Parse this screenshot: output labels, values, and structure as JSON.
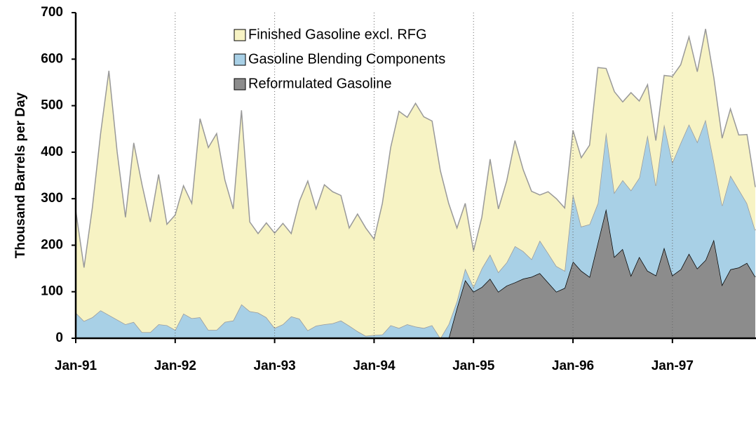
{
  "chart_data": {
    "type": "stacked_area",
    "y_label": "Thousand Barrels per Day",
    "categories": [
      "Jan-91",
      null,
      null,
      null,
      null,
      null,
      null,
      null,
      null,
      null,
      null,
      null,
      "Jan-92",
      null,
      null,
      null,
      null,
      null,
      null,
      null,
      null,
      null,
      null,
      null,
      "Jan-93",
      null,
      null,
      null,
      null,
      null,
      null,
      null,
      null,
      null,
      null,
      null,
      "Jan-94",
      null,
      null,
      null,
      null,
      null,
      null,
      null,
      null,
      null,
      null,
      null,
      "Jan-95",
      null,
      null,
      null,
      null,
      null,
      null,
      null,
      null,
      null,
      null,
      null,
      "Jan-96",
      null,
      null,
      null,
      null,
      null,
      null,
      null,
      null,
      null,
      null,
      null,
      "Jan-97",
      null,
      null,
      null,
      null,
      null,
      null,
      null,
      null,
      null,
      null
    ],
    "series": [
      {
        "name": "Finished Gasoline excl. RFG",
        "color": "#f7f3c4",
        "line_color": "#999999",
        "values": [
          220,
          115,
          235,
          380,
          525,
          360,
          230,
          385,
          317,
          237,
          322,
          217,
          247,
          275,
          247,
          427,
          392,
          422,
          305,
          240,
          417,
          192,
          170,
          203,
          204,
          217,
          178,
          253,
          321,
          251,
          300,
          283,
          269,
          210,
          252,
          232,
          206,
          282,
          382,
          466,
          445,
          480,
          454,
          439,
          360,
          260,
          157,
          140,
          78,
          110,
          205,
          136,
          175,
          227,
          175,
          146,
          98,
          132,
          145,
          135,
          137,
          148,
          170,
          292,
          137,
          217,
          168,
          210,
          165,
          108,
          97,
          105,
          185,
          168,
          188,
          151,
          195,
          180,
          145,
          143,
          117,
          148,
          93
        ]
      },
      {
        "name": "Gasoline Blending Components",
        "color": "#a8d0e6",
        "line_color": "#999999",
        "values": [
          55,
          37,
          45,
          60,
          50,
          40,
          30,
          35,
          13,
          13,
          30,
          28,
          18,
          53,
          43,
          45,
          18,
          18,
          35,
          38,
          73,
          58,
          55,
          45,
          22,
          30,
          47,
          42,
          17,
          27,
          30,
          32,
          38,
          27,
          15,
          5,
          7,
          8,
          28,
          22,
          30,
          25,
          22,
          28,
          0,
          30,
          15,
          25,
          10,
          40,
          52,
          42,
          50,
          78,
          59,
          38,
          70,
          63,
          55,
          37,
          145,
          95,
          113,
          85,
          165,
          138,
          148,
          183,
          170,
          292,
          193,
          265,
          243,
          272,
          278,
          272,
          302,
          168,
          170,
          202,
          168,
          128,
          100
        ]
      },
      {
        "name": "Reformulated Gasoline",
        "color": "#8c8c8c",
        "line_color": "#000000",
        "values": [
          null,
          null,
          null,
          null,
          null,
          null,
          null,
          null,
          null,
          null,
          null,
          null,
          null,
          null,
          null,
          null,
          null,
          null,
          null,
          null,
          null,
          null,
          null,
          null,
          null,
          null,
          null,
          null,
          null,
          null,
          null,
          null,
          null,
          null,
          null,
          null,
          null,
          null,
          null,
          null,
          null,
          null,
          null,
          null,
          null,
          0,
          65,
          125,
          100,
          110,
          128,
          100,
          113,
          120,
          128,
          132,
          140,
          120,
          100,
          108,
          165,
          145,
          132,
          205,
          278,
          175,
          192,
          135,
          175,
          145,
          135,
          195,
          135,
          148,
          182,
          150,
          168,
          212,
          115,
          148,
          152,
          162,
          132
        ]
      }
    ],
    "ylim": [
      0,
      700
    ],
    "yticks": [
      0,
      100,
      200,
      300,
      400,
      500,
      600,
      700
    ],
    "x_grid": true,
    "legend": "upper center"
  }
}
